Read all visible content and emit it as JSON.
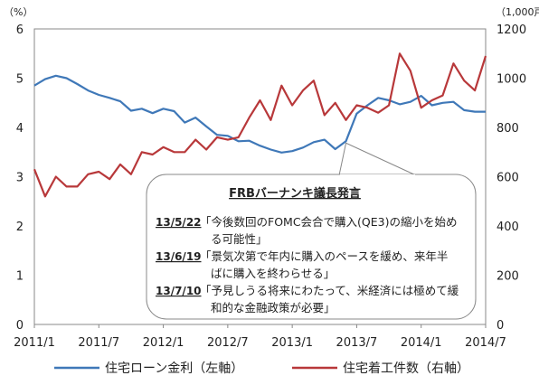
{
  "chart_data": {
    "type": "line",
    "x_tick_labels": [
      "2011/1",
      "2011/7",
      "2012/1",
      "2012/7",
      "2013/1",
      "2013/7",
      "2014/1",
      "2014/7"
    ],
    "left_axis": {
      "unit_label": "（%）",
      "range": [
        0,
        6
      ],
      "ticks": [
        "0",
        "1",
        "2",
        "3",
        "4",
        "5",
        "6"
      ]
    },
    "right_axis": {
      "unit_label": "（1,000戸）",
      "range": [
        0,
        1200
      ],
      "ticks": [
        "0",
        "200",
        "400",
        "600",
        "800",
        "1000",
        "1200"
      ]
    },
    "grid": false,
    "legend_position": "bottom",
    "series": [
      {
        "name": "住宅ローン金利（左軸）",
        "axis": "left",
        "color": "#3f78b8",
        "x": [
          "2011/1",
          "2011/2",
          "2011/3",
          "2011/4",
          "2011/5",
          "2011/6",
          "2011/7",
          "2011/8",
          "2011/9",
          "2011/10",
          "2011/11",
          "2011/12",
          "2012/1",
          "2012/2",
          "2012/3",
          "2012/4",
          "2012/5",
          "2012/6",
          "2012/7",
          "2012/8",
          "2012/9",
          "2012/10",
          "2012/11",
          "2012/12",
          "2013/1",
          "2013/2",
          "2013/3",
          "2013/4",
          "2013/5",
          "2013/6",
          "2013/7",
          "2013/8",
          "2013/9",
          "2013/10",
          "2013/11",
          "2013/12",
          "2014/1",
          "2014/2",
          "2014/3",
          "2014/4",
          "2014/5",
          "2014/6",
          "2014/7"
        ],
        "values": [
          4.85,
          4.98,
          5.05,
          5.0,
          4.88,
          4.75,
          4.66,
          4.6,
          4.53,
          4.34,
          4.38,
          4.29,
          4.38,
          4.33,
          4.1,
          4.2,
          4.02,
          3.85,
          3.83,
          3.72,
          3.73,
          3.63,
          3.55,
          3.49,
          3.52,
          3.59,
          3.7,
          3.75,
          3.56,
          3.72,
          4.28,
          4.45,
          4.6,
          4.55,
          4.47,
          4.52,
          4.64,
          4.45,
          4.5,
          4.52,
          4.35,
          4.32,
          4.32
        ]
      },
      {
        "name": "住宅着工件数（右軸）",
        "axis": "right",
        "color": "#b8383a",
        "x": [
          "2011/1",
          "2011/2",
          "2011/3",
          "2011/4",
          "2011/5",
          "2011/6",
          "2011/7",
          "2011/8",
          "2011/9",
          "2011/10",
          "2011/11",
          "2011/12",
          "2012/1",
          "2012/2",
          "2012/3",
          "2012/4",
          "2012/5",
          "2012/6",
          "2012/7",
          "2012/8",
          "2012/9",
          "2012/10",
          "2012/11",
          "2012/12",
          "2013/1",
          "2013/2",
          "2013/3",
          "2013/4",
          "2013/5",
          "2013/6",
          "2013/7",
          "2013/8",
          "2013/9",
          "2013/10",
          "2013/11",
          "2013/12",
          "2014/1",
          "2014/2",
          "2014/3",
          "2014/4",
          "2014/5",
          "2014/6",
          "2014/7"
        ],
        "values": [
          630,
          520,
          600,
          560,
          560,
          610,
          620,
          590,
          650,
          610,
          700,
          690,
          720,
          700,
          700,
          750,
          710,
          760,
          750,
          760,
          840,
          910,
          830,
          970,
          890,
          950,
          990,
          850,
          900,
          830,
          890,
          880,
          860,
          890,
          1100,
          1030,
          880,
          910,
          930,
          1060,
          990,
          950,
          1090
        ]
      }
    ],
    "annotation": {
      "title": "FRBバーナンキ議長発言",
      "items": [
        {
          "date": "13/5/22",
          "lines": [
            "「今後数回のFOMC会合で購入(QE3)の縮小を始め",
            "る可能性」"
          ]
        },
        {
          "date": "13/6/19",
          "lines": [
            "「景気次第で年内に購入のペースを緩め、来年半",
            "ばに購入を終わらせる」"
          ]
        },
        {
          "date": "13/7/10",
          "lines": [
            "「予見しうる将来にわたって、米経済には極めて緩",
            "和的な金融政策が必要」"
          ]
        }
      ]
    }
  }
}
